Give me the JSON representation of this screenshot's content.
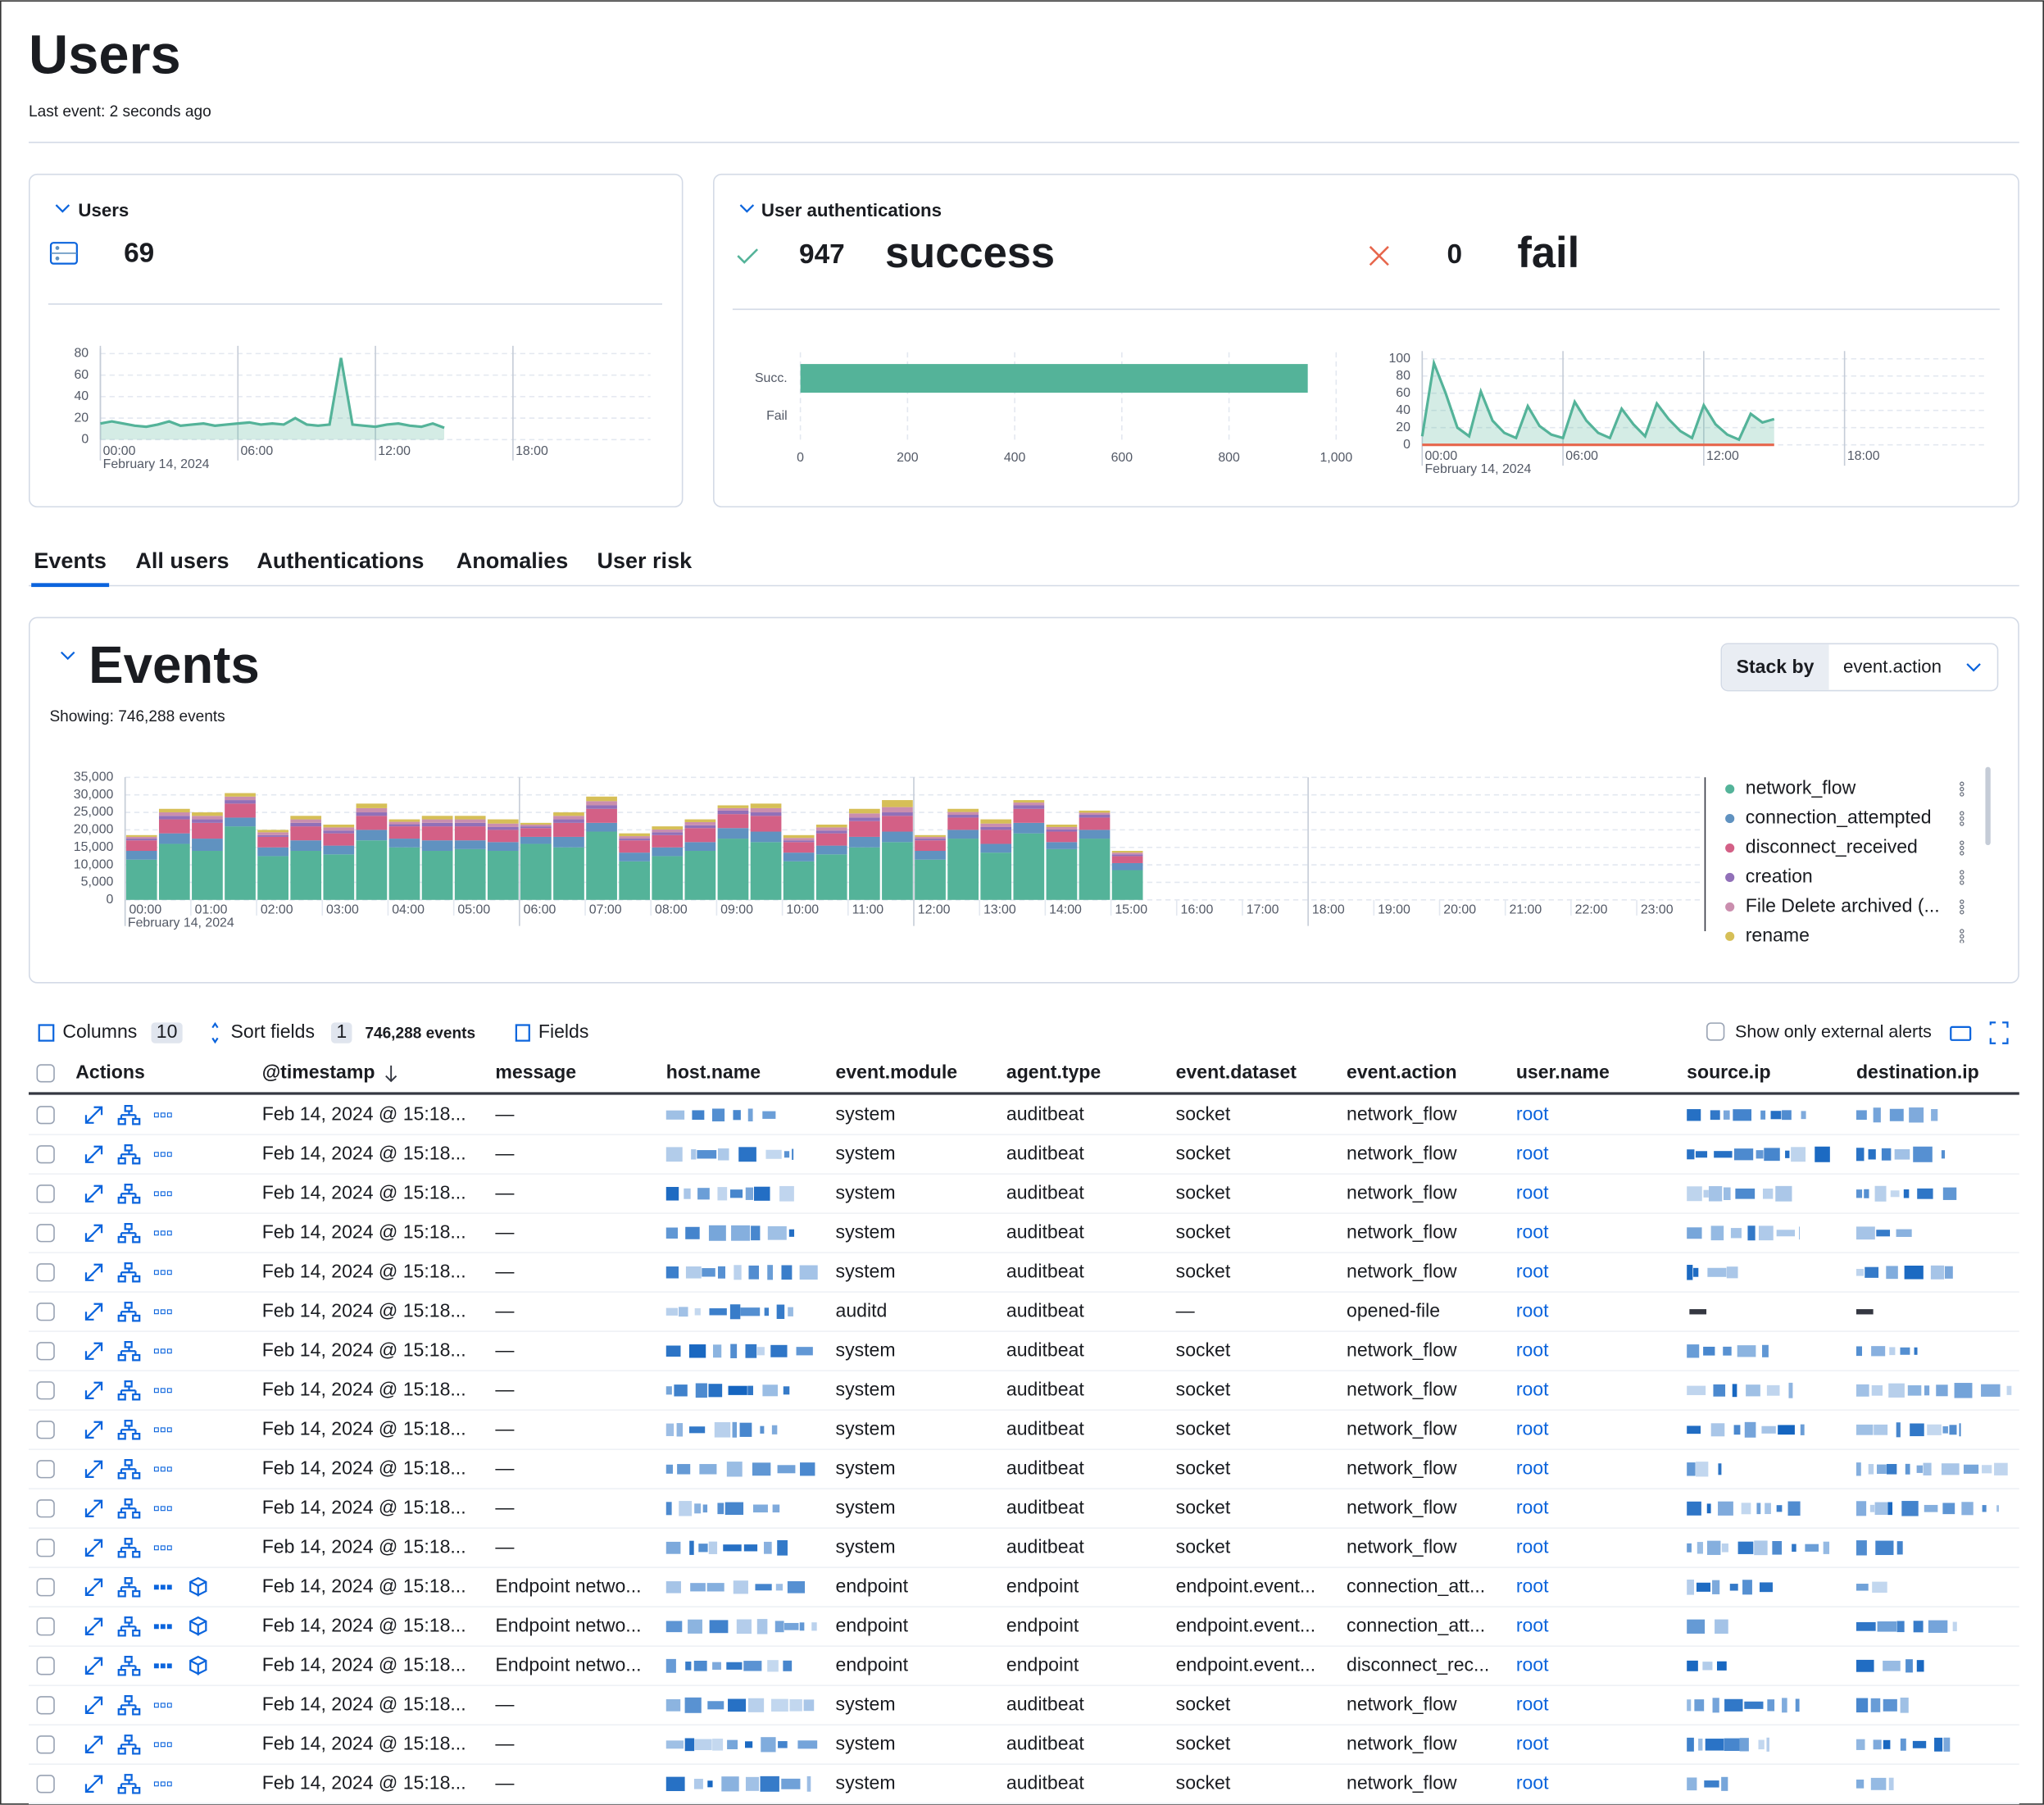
{
  "header": {
    "title": "Users",
    "subtitle": "Last event: 2 seconds ago"
  },
  "users_panel": {
    "title": "Users",
    "count": 69,
    "chart": {
      "type": "line",
      "color": "#54b399",
      "date": "February 14, 2024",
      "x": [
        0,
        0.5,
        1,
        1.5,
        2,
        2.5,
        3,
        3.5,
        4,
        4.5,
        5,
        5.5,
        6,
        6.5,
        7,
        7.5,
        8,
        8.5,
        9,
        9.5,
        10,
        10.5,
        11,
        11.5,
        12,
        12.5,
        13,
        13.5,
        14,
        14.5,
        15
      ],
      "values": [
        15,
        17,
        15,
        13,
        12,
        14,
        17,
        13,
        14,
        15,
        13,
        14,
        15,
        16,
        14,
        15,
        14,
        20,
        14,
        13,
        14,
        76,
        14,
        13,
        12,
        14,
        15,
        13,
        12,
        15,
        11
      ],
      "xlim": [
        0,
        24
      ],
      "xticks": [
        {
          "value": 0,
          "label": "00:00"
        },
        {
          "value": 6,
          "label": "06:00"
        },
        {
          "value": 12,
          "label": "12:00"
        },
        {
          "value": 18,
          "label": "18:00"
        }
      ],
      "ylim": [
        0,
        80
      ],
      "yticks": [
        0,
        20,
        40,
        60,
        80
      ]
    }
  },
  "auth_panel": {
    "title": "User authentications",
    "success_count": 947,
    "success_label": "success",
    "fail_count": 0,
    "fail_label": "fail",
    "bar_chart": {
      "type": "bar",
      "color": "#54b399",
      "categories": [
        "Succ.",
        "Fail"
      ],
      "values": [
        947,
        0
      ],
      "xlim": [
        0,
        1000
      ],
      "xticks": [
        0,
        200,
        400,
        600,
        800,
        {
          "value": 1000,
          "label": "1,000"
        }
      ]
    },
    "line_chart": {
      "type": "line",
      "date": "February 14, 2024",
      "x": [
        0,
        0.5,
        1,
        1.5,
        2,
        2.5,
        3,
        3.5,
        4,
        4.5,
        5,
        5.5,
        6,
        6.5,
        7,
        7.5,
        8,
        8.5,
        9,
        9.5,
        10,
        10.5,
        11,
        11.5,
        12,
        12.5,
        13,
        13.5,
        14,
        14.5,
        15
      ],
      "series": [
        {
          "color": "#54b399",
          "values": [
            10,
            95,
            60,
            20,
            10,
            62,
            28,
            14,
            8,
            45,
            22,
            12,
            8,
            50,
            28,
            14,
            8,
            42,
            24,
            10,
            48,
            30,
            16,
            8,
            46,
            24,
            12,
            6,
            36,
            26,
            30
          ]
        },
        {
          "color": "#e7664c",
          "values": [
            0,
            0,
            0,
            0,
            0,
            0,
            0,
            0,
            0,
            0,
            0,
            0,
            0,
            0,
            0,
            0,
            0,
            0,
            0,
            0,
            0,
            0,
            0,
            0,
            0,
            0,
            0,
            0,
            0,
            0,
            0
          ]
        }
      ],
      "xlim": [
        0,
        24
      ],
      "xticks": [
        {
          "value": 0,
          "label": "00:00"
        },
        {
          "value": 6,
          "label": "06:00"
        },
        {
          "value": 12,
          "label": "12:00"
        },
        {
          "value": 18,
          "label": "18:00"
        }
      ],
      "ylim": [
        0,
        100
      ],
      "yticks": [
        0,
        20,
        40,
        60,
        80,
        100
      ]
    }
  },
  "tabs": [
    "Events",
    "All users",
    "Authentications",
    "Anomalies",
    "User risk"
  ],
  "active_tab": 0,
  "events_panel": {
    "title": "Events",
    "subtitle": "Showing: 746,288 events",
    "stack_by_label": "Stack by",
    "stack_by_value": "event.action",
    "chart": {
      "type": "stacked-bar",
      "date": "February 14, 2024",
      "x": [
        0,
        0.5,
        1,
        1.5,
        2,
        2.5,
        3,
        3.5,
        4,
        4.5,
        5,
        5.5,
        6,
        6.5,
        7,
        7.5,
        8,
        8.5,
        9,
        9.5,
        10,
        10.5,
        11,
        11.5,
        12,
        12.5,
        13,
        13.5,
        14,
        14.5,
        15
      ],
      "series": [
        {
          "name": "network_flow",
          "color": "#54b399",
          "values": [
            11500,
            16000,
            14000,
            21000,
            12500,
            14000,
            13000,
            17000,
            15000,
            14000,
            14500,
            14000,
            16000,
            15000,
            19500,
            11000,
            12500,
            14000,
            17500,
            16500,
            11000,
            13000,
            15000,
            16500,
            11500,
            17500,
            13500,
            19000,
            14500,
            17500,
            8500
          ]
        },
        {
          "name": "connection_attempted",
          "color": "#6092c0",
          "values": [
            2500,
            3000,
            3500,
            2500,
            2500,
            3000,
            2500,
            3000,
            2500,
            3000,
            2500,
            2500,
            2000,
            3000,
            2500,
            2500,
            2500,
            2500,
            3000,
            3000,
            2500,
            2500,
            3000,
            3000,
            2500,
            2500,
            2500,
            3000,
            2000,
            2500,
            2000
          ]
        },
        {
          "name": "disconnect_received",
          "color": "#d36086",
          "values": [
            3000,
            4000,
            4500,
            4000,
            3000,
            4000,
            3500,
            4000,
            3500,
            4000,
            4000,
            3500,
            2500,
            4000,
            4000,
            3500,
            3500,
            4000,
            4000,
            4500,
            3000,
            3500,
            4500,
            4500,
            3000,
            3500,
            4000,
            4000,
            3000,
            3500,
            2000
          ]
        },
        {
          "name": "creation",
          "color": "#9170b8",
          "values": [
            500,
            1000,
            1000,
            1000,
            500,
            1000,
            800,
            1000,
            600,
            1000,
            1000,
            800,
            500,
            1000,
            1000,
            500,
            800,
            800,
            1000,
            1000,
            500,
            800,
            1000,
            1000,
            500,
            800,
            800,
            1000,
            600,
            800,
            500
          ]
        },
        {
          "name": "File Delete archived (...",
          "color": "#ca8eae",
          "values": [
            500,
            1000,
            1000,
            1000,
            800,
            1000,
            900,
            1200,
            700,
            1000,
            1000,
            1000,
            500,
            1000,
            1200,
            700,
            800,
            900,
            700,
            1200,
            700,
            900,
            1200,
            1500,
            500,
            800,
            1000,
            800,
            700,
            600,
            500
          ]
        },
        {
          "name": "rename",
          "color": "#d6bf57",
          "values": [
            500,
            1000,
            1000,
            1000,
            700,
            1000,
            800,
            1300,
            700,
            1000,
            1000,
            1200,
            500,
            1000,
            1300,
            800,
            900,
            800,
            800,
            1300,
            800,
            800,
            1300,
            2000,
            500,
            900,
            1200,
            700,
            700,
            600,
            500
          ]
        }
      ],
      "xlim": [
        0,
        24
      ],
      "xticks": [
        {
          "value": 0,
          "label": "00:00"
        },
        {
          "value": 1,
          "label": "01:00"
        },
        {
          "value": 2,
          "label": "02:00"
        },
        {
          "value": 3,
          "label": "03:00"
        },
        {
          "value": 4,
          "label": "04:00"
        },
        {
          "value": 5,
          "label": "05:00"
        },
        {
          "value": 6,
          "label": "06:00"
        },
        {
          "value": 7,
          "label": "07:00"
        },
        {
          "value": 8,
          "label": "08:00"
        },
        {
          "value": 9,
          "label": "09:00"
        },
        {
          "value": 10,
          "label": "10:00"
        },
        {
          "value": 11,
          "label": "11:00"
        },
        {
          "value": 12,
          "label": "12:00"
        },
        {
          "value": 13,
          "label": "13:00"
        },
        {
          "value": 14,
          "label": "14:00"
        },
        {
          "value": 15,
          "label": "15:00"
        },
        {
          "value": 16,
          "label": "16:00"
        },
        {
          "value": 17,
          "label": "17:00"
        },
        {
          "value": 18,
          "label": "18:00"
        },
        {
          "value": 19,
          "label": "19:00"
        },
        {
          "value": 20,
          "label": "20:00"
        },
        {
          "value": 21,
          "label": "21:00"
        },
        {
          "value": 22,
          "label": "22:00"
        },
        {
          "value": 23,
          "label": "23:00"
        }
      ],
      "ylim": [
        0,
        35000
      ],
      "yticks": [
        0,
        {
          "value": 5000,
          "label": "5,000"
        },
        {
          "value": 10000,
          "label": "10,000"
        },
        {
          "value": 15000,
          "label": "15,000"
        },
        {
          "value": 20000,
          "label": "20,000"
        },
        {
          "value": 25000,
          "label": "25,000"
        },
        {
          "value": 30000,
          "label": "30,000"
        },
        {
          "value": 35000,
          "label": "35,000"
        }
      ]
    }
  },
  "table": {
    "toolbar": {
      "columns_label": "Columns",
      "columns_count": 10,
      "sort_label": "Sort fields",
      "sort_count": 1,
      "events": "746,288 events",
      "fields_label": "Fields",
      "external_alerts": "Show only external alerts"
    },
    "columns": [
      "Actions",
      "@timestamp",
      "message",
      "host.name",
      "event.module",
      "agent.type",
      "event.dataset",
      "event.action",
      "user.name",
      "source.ip",
      "destination.ip"
    ],
    "rows": [
      [
        "Feb 14, 2024 @ 15:18...",
        "—",
        "system",
        "auditbeat",
        "socket",
        "network_flow",
        "root"
      ],
      [
        "Feb 14, 2024 @ 15:18...",
        "—",
        "system",
        "auditbeat",
        "socket",
        "network_flow",
        "root"
      ],
      [
        "Feb 14, 2024 @ 15:18...",
        "—",
        "system",
        "auditbeat",
        "socket",
        "network_flow",
        "root"
      ],
      [
        "Feb 14, 2024 @ 15:18...",
        "—",
        "system",
        "auditbeat",
        "socket",
        "network_flow",
        "root"
      ],
      [
        "Feb 14, 2024 @ 15:18...",
        "—",
        "system",
        "auditbeat",
        "socket",
        "network_flow",
        "root"
      ],
      [
        "Feb 14, 2024 @ 15:18...",
        "—",
        "auditd",
        "auditbeat",
        "—",
        "opened-file",
        "root"
      ],
      [
        "Feb 14, 2024 @ 15:18...",
        "—",
        "system",
        "auditbeat",
        "socket",
        "network_flow",
        "root"
      ],
      [
        "Feb 14, 2024 @ 15:18...",
        "—",
        "system",
        "auditbeat",
        "socket",
        "network_flow",
        "root"
      ],
      [
        "Feb 14, 2024 @ 15:18...",
        "—",
        "system",
        "auditbeat",
        "socket",
        "network_flow",
        "root"
      ],
      [
        "Feb 14, 2024 @ 15:18...",
        "—",
        "system",
        "auditbeat",
        "socket",
        "network_flow",
        "root"
      ],
      [
        "Feb 14, 2024 @ 15:18...",
        "—",
        "system",
        "auditbeat",
        "socket",
        "network_flow",
        "root"
      ],
      [
        "Feb 14, 2024 @ 15:18...",
        "—",
        "system",
        "auditbeat",
        "socket",
        "network_flow",
        "root"
      ],
      [
        "Feb 14, 2024 @ 15:18...",
        "Endpoint netwo...",
        "endpoint",
        "endpoint",
        "endpoint.event...",
        "connection_att...",
        "root"
      ],
      [
        "Feb 14, 2024 @ 15:18...",
        "Endpoint netwo...",
        "endpoint",
        "endpoint",
        "endpoint.event...",
        "connection_att...",
        "root"
      ],
      [
        "Feb 14, 2024 @ 15:18...",
        "Endpoint netwo...",
        "endpoint",
        "endpoint",
        "endpoint.event...",
        "disconnect_rec...",
        "root"
      ],
      [
        "Feb 14, 2024 @ 15:18...",
        "—",
        "system",
        "auditbeat",
        "socket",
        "network_flow",
        "root"
      ],
      [
        "Feb 14, 2024 @ 15:18...",
        "—",
        "system",
        "auditbeat",
        "socket",
        "network_flow",
        "root"
      ],
      [
        "Feb 14, 2024 @ 15:18...",
        "—",
        "system",
        "auditbeat",
        "socket",
        "network_flow",
        "root"
      ]
    ]
  }
}
